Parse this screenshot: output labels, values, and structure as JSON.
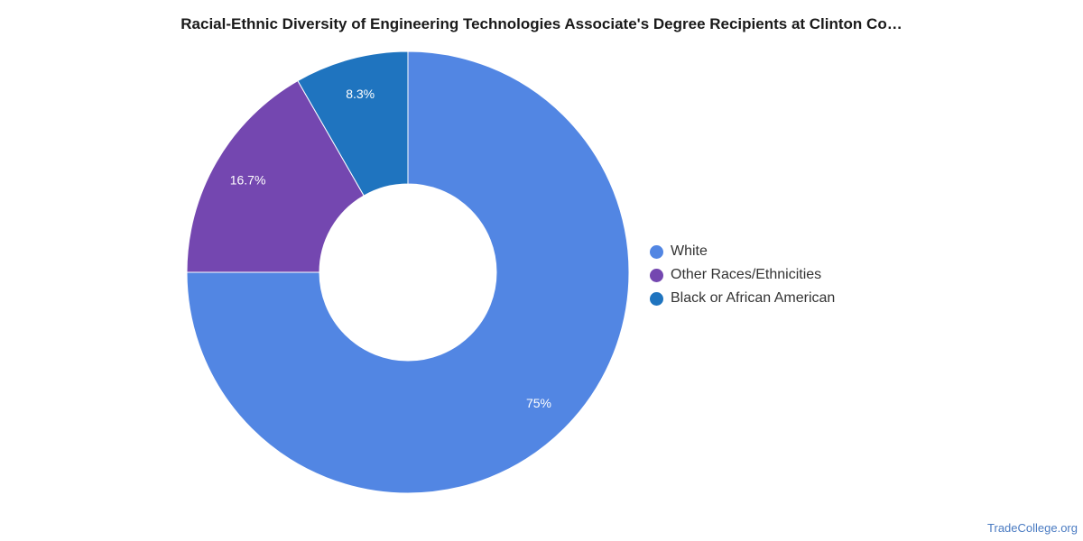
{
  "chart_data": {
    "type": "pie",
    "donut": true,
    "title": "Racial-Ethnic Diversity of Engineering Technologies Associate's Degree Recipients at Clinton Co…",
    "legend_position": "right",
    "slices": [
      {
        "name": "White",
        "value": 75,
        "label": "75%",
        "color": "#5286e3"
      },
      {
        "name": "Other Races/Ethnicities",
        "value": 16.7,
        "label": "16.7%",
        "color": "#7447b0"
      },
      {
        "name": "Black or African American",
        "value": 8.3,
        "label": "8.3%",
        "color": "#1f74bf"
      }
    ]
  },
  "footer": {
    "source": "TradeCollege.org"
  }
}
